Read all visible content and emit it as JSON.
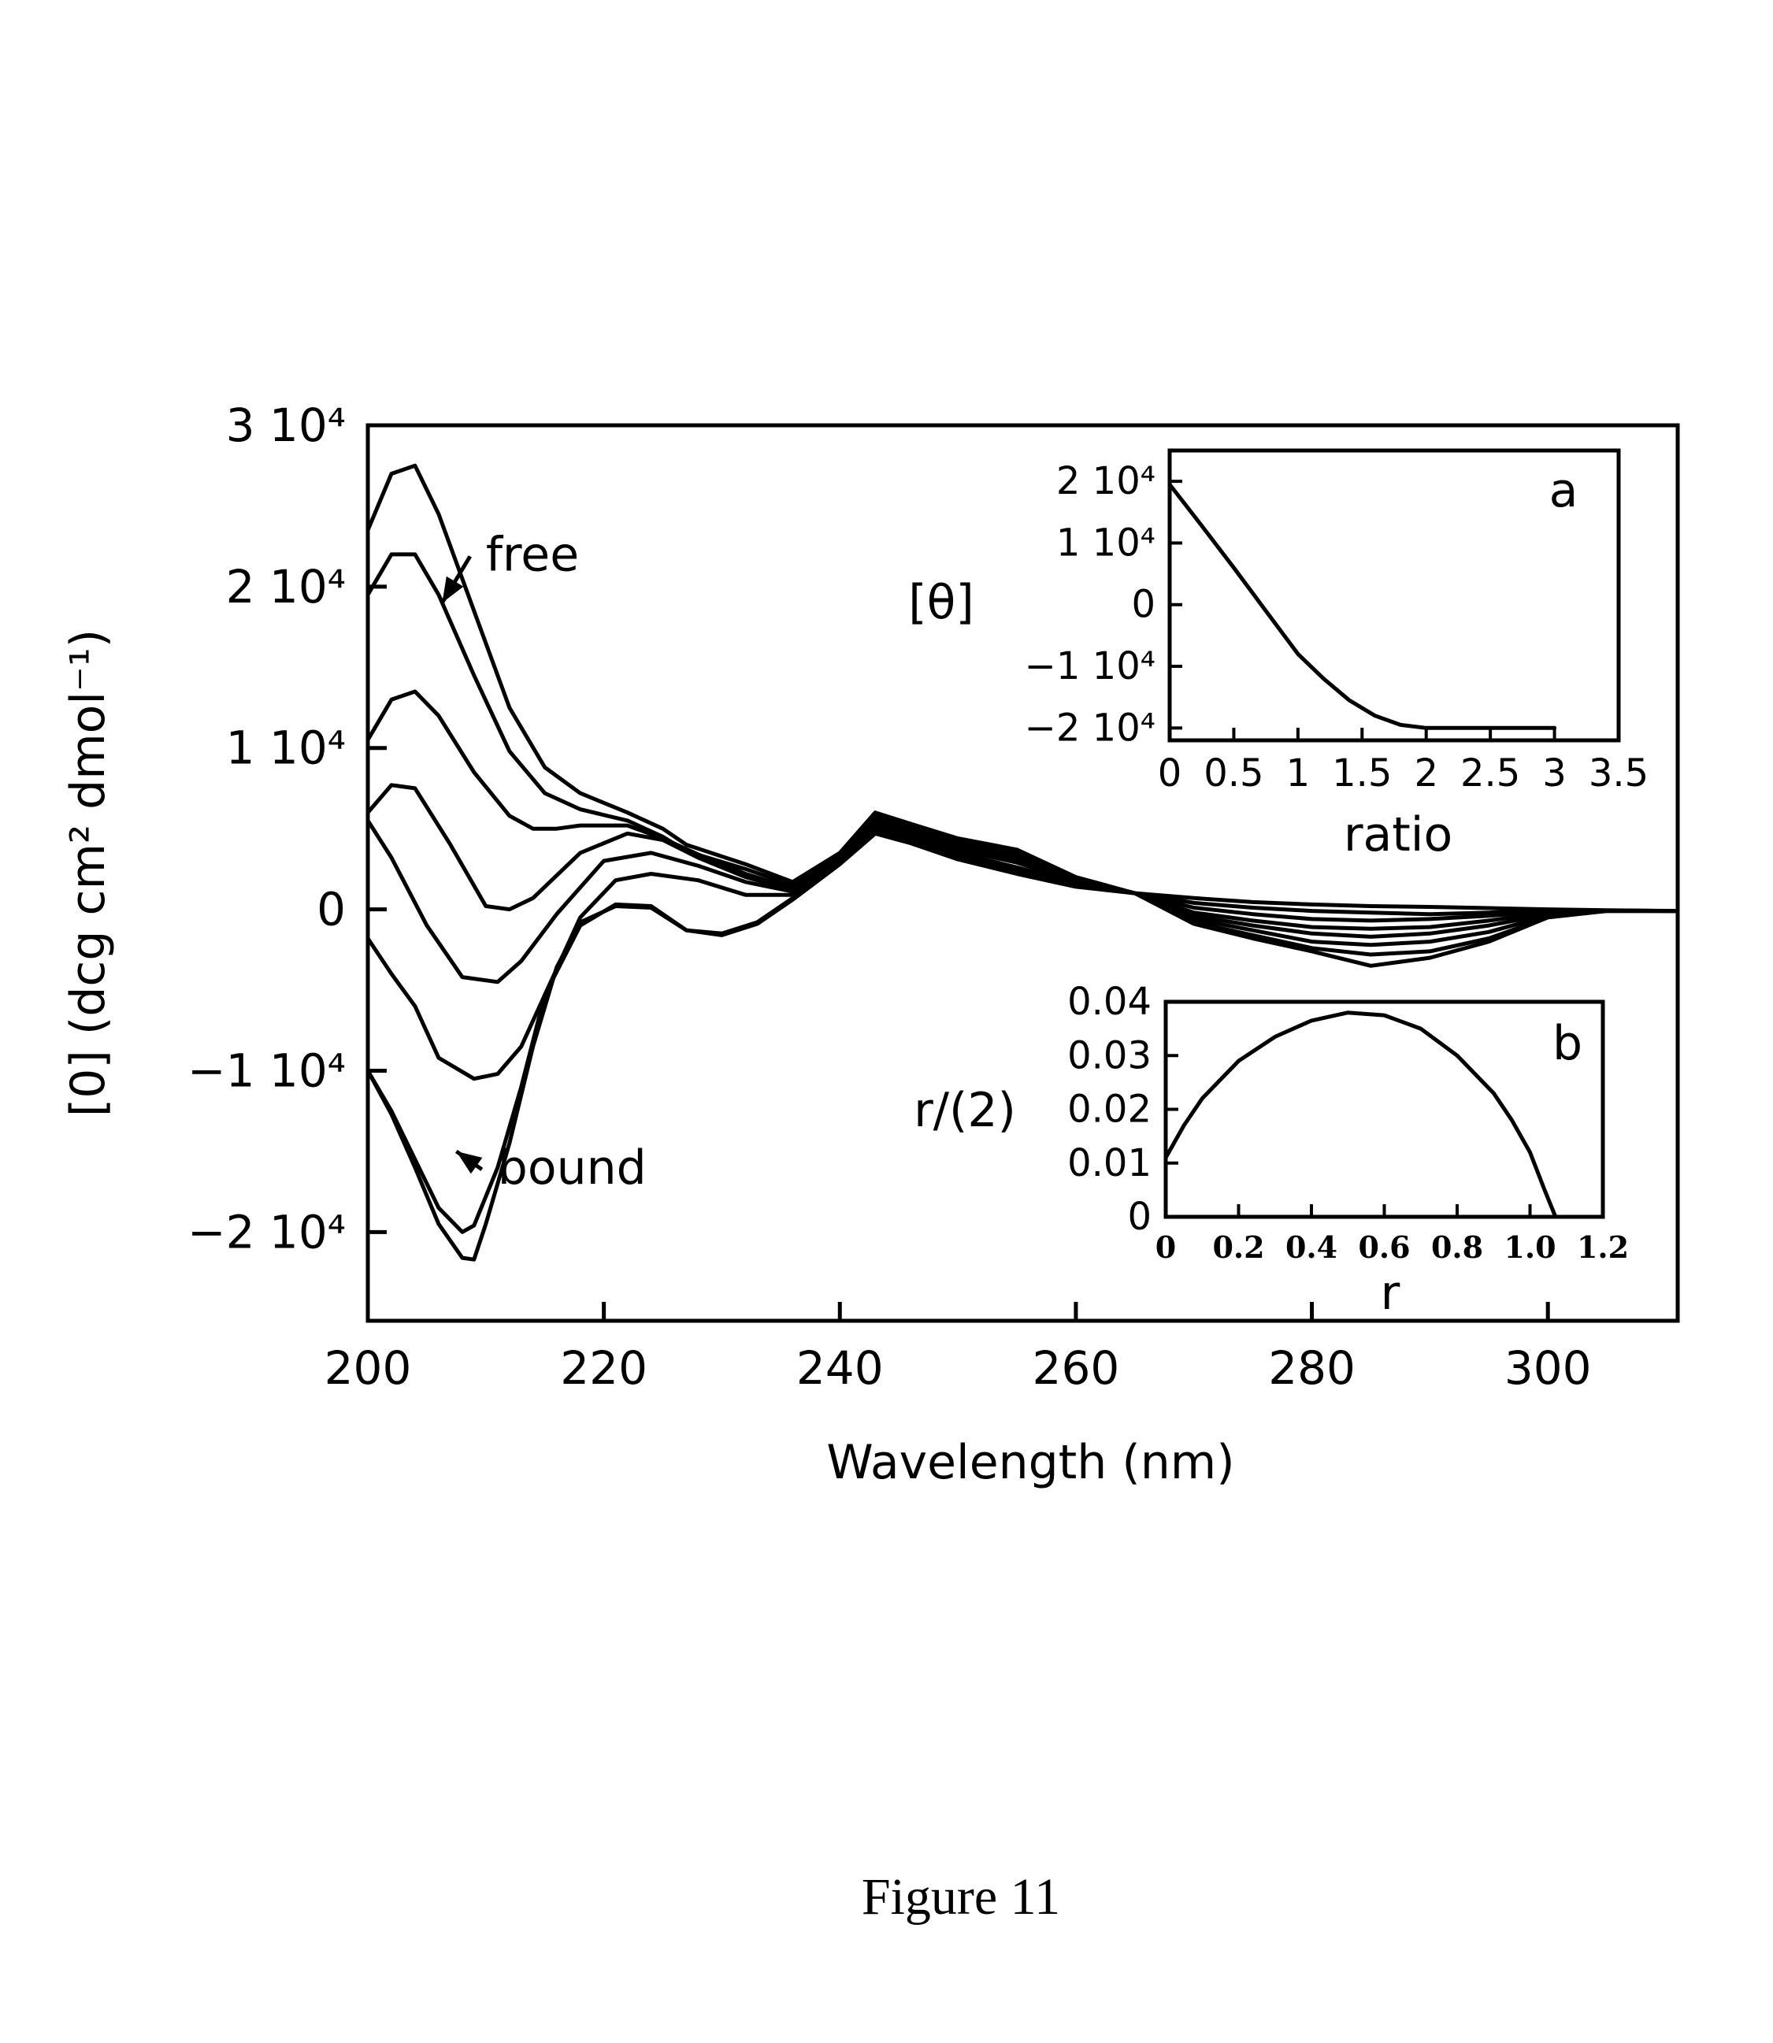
{
  "caption": "Figure 11",
  "chart_data": [
    {
      "id": "main",
      "type": "line",
      "xlabel": "Wavelength (nm)",
      "ylabel": "[0] (dcg cm² dmol⁻¹)",
      "xlim": [
        200,
        311
      ],
      "ylim": [
        -25500,
        30000
      ],
      "xticks": [
        200,
        220,
        240,
        260,
        280,
        300
      ],
      "yticks": [
        {
          "value": 30000,
          "label": "3 10⁴"
        },
        {
          "value": 20000,
          "label": "2 10⁴"
        },
        {
          "value": 10000,
          "label": "1 10⁴"
        },
        {
          "value": 0,
          "label": "0"
        },
        {
          "value": -10000,
          "label": "−1 10⁴"
        },
        {
          "value": -20000,
          "label": "−2 10⁴"
        }
      ],
      "annotations": [
        {
          "text": "free",
          "x": 210,
          "y": 21000,
          "arrow_to": [
            206.3,
            19000
          ]
        },
        {
          "text": "bound",
          "x": 211,
          "y": -17000,
          "arrow_to": [
            207.5,
            -15000
          ]
        }
      ],
      "series": [
        {
          "x": [
            200,
            202,
            204,
            206,
            209,
            212,
            215,
            218,
            222,
            225,
            227,
            232,
            236,
            240,
            243,
            246,
            250,
            255,
            260,
            265,
            270,
            275,
            280,
            285,
            290,
            295,
            300,
            305,
            311
          ],
          "y": [
            23500,
            27000,
            27500,
            24500,
            18500,
            12500,
            8800,
            7200,
            6000,
            5000,
            4000,
            2800,
            1700,
            3500,
            6000,
            5300,
            4400,
            3700,
            2000,
            1000,
            700,
            450,
            300,
            200,
            150,
            80,
            0,
            -60,
            -100
          ]
        },
        {
          "x": [
            200,
            202,
            204,
            206,
            209,
            212,
            215,
            218,
            222,
            225,
            227,
            232,
            236,
            240,
            243,
            246,
            250,
            255,
            260,
            265,
            270,
            275,
            280,
            285,
            290,
            295,
            300,
            305,
            311
          ],
          "y": [
            19500,
            22000,
            22000,
            19500,
            14500,
            9800,
            7200,
            6200,
            5500,
            4500,
            3600,
            2500,
            1500,
            3400,
            5800,
            5100,
            4200,
            3500,
            1900,
            1000,
            400,
            100,
            -100,
            -200,
            -300,
            -200,
            -50,
            -80,
            -100
          ]
        },
        {
          "x": [
            200,
            202,
            204,
            206,
            209,
            212,
            214,
            216,
            218,
            222,
            225,
            228,
            232,
            236,
            240,
            243,
            246,
            250,
            255,
            260,
            265,
            270,
            275,
            280,
            285,
            290,
            295,
            300,
            305,
            311
          ],
          "y": [
            10500,
            13000,
            13500,
            12000,
            8500,
            5800,
            5000,
            5000,
            5200,
            5200,
            4400,
            3400,
            2200,
            1300,
            3300,
            5600,
            4900,
            4000,
            3300,
            1800,
            1000,
            100,
            -300,
            -600,
            -700,
            -600,
            -400,
            -100,
            -80,
            -100
          ]
        },
        {
          "x": [
            200,
            202,
            204,
            207,
            210,
            212,
            214,
            218,
            222,
            225,
            228,
            232,
            236,
            240,
            243,
            246,
            250,
            255,
            260,
            265,
            270,
            275,
            280,
            285,
            290,
            295,
            300,
            305,
            311
          ],
          "y": [
            6000,
            7700,
            7500,
            4000,
            200,
            0,
            700,
            3500,
            4700,
            4300,
            3200,
            2000,
            1200,
            3200,
            5400,
            4800,
            3900,
            3100,
            1800,
            1000,
            -200,
            -700,
            -1100,
            -1200,
            -1100,
            -700,
            -200,
            -90,
            -100
          ]
        },
        {
          "x": [
            200,
            202,
            205,
            208,
            211,
            213,
            216,
            220,
            224,
            228,
            232,
            236,
            240,
            243,
            246,
            250,
            255,
            260,
            265,
            270,
            275,
            280,
            285,
            290,
            295,
            300,
            305,
            311
          ],
          "y": [
            5500,
            3200,
            -1000,
            -4200,
            -4500,
            -3200,
            -300,
            3000,
            3500,
            2700,
            1700,
            1100,
            3100,
            5300,
            4700,
            3700,
            2900,
            1700,
            1000,
            -400,
            -1000,
            -1500,
            -1700,
            -1500,
            -1000,
            -300,
            -100,
            -100
          ]
        },
        {
          "x": [
            200,
            202,
            204,
            206,
            209,
            211,
            213,
            215,
            218,
            221,
            224,
            228,
            232,
            236,
            240,
            243,
            246,
            250,
            255,
            260,
            265,
            270,
            275,
            280,
            285,
            290,
            295,
            300,
            305,
            311
          ],
          "y": [
            -1800,
            -4000,
            -6000,
            -9200,
            -10500,
            -10200,
            -8500,
            -5300,
            -500,
            1800,
            2200,
            1800,
            900,
            900,
            3000,
            5100,
            4500,
            3500,
            2600,
            1600,
            1000,
            -600,
            -1300,
            -2000,
            -2200,
            -2000,
            -1400,
            -400,
            -100,
            -100
          ]
        },
        {
          "x": [
            200,
            202,
            204,
            206,
            208,
            209,
            211,
            213,
            215,
            218,
            221,
            224,
            227,
            230,
            233,
            236,
            240,
            243,
            246,
            250,
            255,
            260,
            265,
            270,
            275,
            280,
            285,
            290,
            295,
            300,
            305,
            311
          ],
          "y": [
            -10000,
            -12500,
            -15500,
            -18500,
            -20000,
            -19600,
            -16000,
            -11000,
            -5300,
            -1000,
            300,
            200,
            -1300,
            -1500,
            -800,
            700,
            2900,
            4900,
            4300,
            3300,
            2400,
            1500,
            1000,
            -800,
            -1600,
            -2400,
            -2800,
            -2600,
            -1800,
            -500,
            -100,
            -100
          ]
        },
        {
          "x": [
            200,
            202,
            204,
            206,
            208,
            209,
            210,
            212,
            214,
            216,
            218,
            221,
            224,
            227,
            230,
            233,
            236,
            240,
            243,
            246,
            250,
            255,
            260,
            265,
            270,
            275,
            280,
            285,
            290,
            295,
            300,
            305,
            311
          ],
          "y": [
            -10000,
            -12700,
            -16000,
            -19500,
            -21600,
            -21700,
            -19500,
            -14500,
            -8500,
            -3600,
            -800,
            200,
            100,
            -1300,
            -1600,
            -900,
            600,
            2800,
            4700,
            4100,
            3100,
            2200,
            1400,
            1000,
            -900,
            -1800,
            -2600,
            -3500,
            -3000,
            -2000,
            -500,
            -100,
            -100
          ]
        }
      ]
    },
    {
      "id": "inset-a",
      "type": "line",
      "panel_label": "a",
      "xlabel": "ratio",
      "ylabel": "[θ]",
      "xlim": [
        0,
        3.5
      ],
      "ylim": [
        -22000,
        25000
      ],
      "xticks": [
        "0",
        "0.5",
        "1",
        "1.5",
        "2",
        "2.5",
        "3",
        "3.5"
      ],
      "yticks": [
        {
          "value": 20000,
          "label": "2 10⁴"
        },
        {
          "value": 10000,
          "label": "1 10⁴"
        },
        {
          "value": 0,
          "label": "0"
        },
        {
          "value": -10000,
          "label": "−1 10⁴"
        },
        {
          "value": -20000,
          "label": "−2 10⁴"
        }
      ],
      "series": [
        {
          "x": [
            0,
            0.25,
            0.5,
            0.75,
            1.0,
            1.2,
            1.4,
            1.6,
            1.8,
            2.0,
            2.5,
            3.0
          ],
          "y": [
            19500,
            12800,
            6000,
            -1000,
            -8000,
            -12000,
            -15500,
            -18000,
            -19500,
            -20000,
            -20000,
            -20000
          ]
        }
      ]
    },
    {
      "id": "inset-b",
      "type": "line",
      "panel_label": "b",
      "xlabel": "r",
      "ylabel": "r/(2)",
      "xlim": [
        0,
        1.2
      ],
      "ylim": [
        0,
        0.04
      ],
      "xticks": [
        "0",
        "0.2",
        "0.4",
        "0.6",
        "0.8",
        "1.0",
        "1.2"
      ],
      "yticks": [
        {
          "value": 0.04,
          "label": "0.04"
        },
        {
          "value": 0.03,
          "label": "0.03"
        },
        {
          "value": 0.02,
          "label": "0.02"
        },
        {
          "value": 0.01,
          "label": "0.01"
        },
        {
          "value": 0,
          "label": "0"
        }
      ],
      "series": [
        {
          "x": [
            0,
            0.05,
            0.1,
            0.2,
            0.3,
            0.4,
            0.5,
            0.6,
            0.7,
            0.8,
            0.9,
            0.95,
            1.0,
            1.04,
            1.07
          ],
          "y": [
            0.011,
            0.017,
            0.022,
            0.029,
            0.0335,
            0.0365,
            0.038,
            0.0375,
            0.035,
            0.03,
            0.023,
            0.018,
            0.012,
            0.005,
            0
          ]
        }
      ]
    }
  ]
}
